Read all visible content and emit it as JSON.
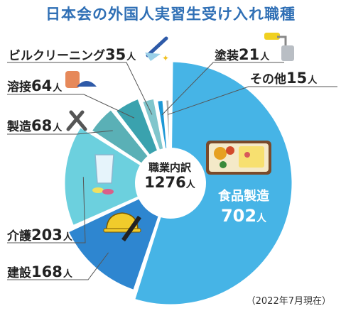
{
  "title": "日本会の外国人実習生受け入れ職種",
  "note": "（2022年7月現在）",
  "center": {
    "label": "職業内訳",
    "total": "1276",
    "unit": "人"
  },
  "chart_data": {
    "type": "pie",
    "title": "日本会の外国人実習生受け入れ職種",
    "unit": "人",
    "total": 1276,
    "slices": [
      {
        "name": "食品製造",
        "value": 702,
        "color": "#46b4e6"
      },
      {
        "name": "建設",
        "value": 168,
        "color": "#2e86d0"
      },
      {
        "name": "介護",
        "value": 203,
        "color": "#6cd0de"
      },
      {
        "name": "製造",
        "value": 68,
        "color": "#5ab0b6"
      },
      {
        "name": "溶接",
        "value": 64,
        "color": "#3aa2ae"
      },
      {
        "name": "ビルクリーニング",
        "value": 35,
        "color": "#80c6cc"
      },
      {
        "name": "塗装",
        "value": 21,
        "color": "#1d98d6"
      },
      {
        "name": "その他",
        "value": 15,
        "color": "#a9a9a9"
      }
    ]
  }
}
